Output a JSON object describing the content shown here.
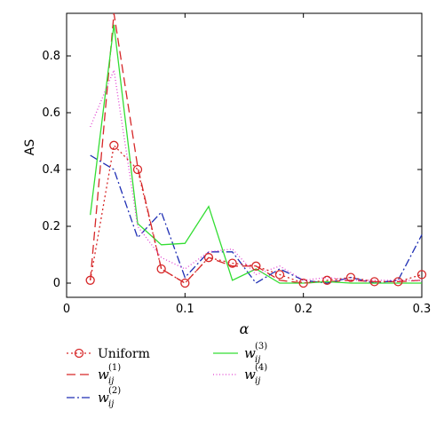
{
  "chart_data": {
    "type": "line",
    "title": "",
    "xlabel": "α",
    "ylabel": "AS",
    "xlim": [
      0,
      0.3
    ],
    "ylim": [
      -0.05,
      0.95
    ],
    "x_ticks": [
      0,
      0.1,
      0.2,
      0.3
    ],
    "x_tick_labels": [
      "0",
      "0.1",
      "0.2",
      "0.3"
    ],
    "y_ticks": [
      0,
      0.2,
      0.4,
      0.6,
      0.8
    ],
    "y_tick_labels": [
      "0",
      "0.2",
      "0.4",
      "0.6",
      "0.8"
    ],
    "grid": false,
    "legend_position": "below",
    "x": [
      0.02,
      0.04,
      0.06,
      0.08,
      0.1,
      0.12,
      0.14,
      0.16,
      0.18,
      0.2,
      0.22,
      0.24,
      0.26,
      0.28,
      0.3
    ],
    "series": [
      {
        "name": "Uniform",
        "legend_main": "Uniform",
        "legend_sub": "",
        "legend_sup": "",
        "color": "#d62728",
        "dash": "2,3",
        "marker": "circle",
        "values": [
          0.01,
          0.485,
          0.4,
          0.05,
          0.0,
          0.09,
          0.07,
          0.06,
          0.03,
          0.0,
          0.01,
          0.02,
          0.005,
          0.005,
          0.03
        ]
      },
      {
        "name": "w_ij^(1)",
        "legend_main": "w",
        "legend_sub": "ij",
        "legend_sup": "(1)",
        "color": "#d62728",
        "dash": "10,5",
        "marker": "none",
        "values": [
          0.01,
          0.95,
          0.41,
          0.05,
          0.0,
          0.09,
          0.06,
          0.06,
          0.01,
          0.0,
          0.005,
          0.01,
          0.005,
          0.005,
          0.01
        ]
      },
      {
        "name": "w_ij^(2)",
        "legend_main": "w",
        "legend_sub": "ij",
        "legend_sup": "(2)",
        "color": "#1f2fb4",
        "dash": "9,3,2,3",
        "marker": "none",
        "values": [
          0.45,
          0.4,
          0.16,
          0.25,
          0.02,
          0.11,
          0.11,
          0.0,
          0.05,
          0.01,
          0.0,
          0.02,
          0.0,
          0.01,
          0.17
        ]
      },
      {
        "name": "w_ij^(3)",
        "legend_main": "w",
        "legend_sub": "ij",
        "legend_sup": "(3)",
        "color": "#33dd33",
        "dash": "",
        "marker": "none",
        "values": [
          0.24,
          0.91,
          0.21,
          0.135,
          0.14,
          0.27,
          0.01,
          0.05,
          0.0,
          0.0,
          0.005,
          0.0,
          0.0,
          0.0,
          0.0
        ]
      },
      {
        "name": "w_ij^(4)",
        "legend_main": "w",
        "legend_sub": "ij",
        "legend_sup": "(4)",
        "color": "#e040d0",
        "dash": "1,2.5",
        "marker": "none",
        "values": [
          0.55,
          0.75,
          0.2,
          0.09,
          0.05,
          0.11,
          0.12,
          0.03,
          0.06,
          0.01,
          0.02,
          0.01,
          0.01,
          0.01,
          0.01
        ]
      }
    ]
  }
}
